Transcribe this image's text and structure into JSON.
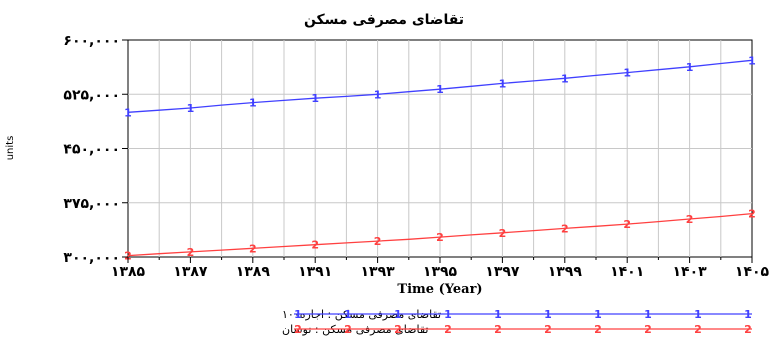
{
  "chart_data": {
    "type": "line",
    "title": "تقاضای مصرفی مسکن",
    "xlabel": "Time (Year)",
    "ylabel": "units",
    "xlim": [
      1385,
      1405
    ],
    "ylim": [
      300000,
      600000
    ],
    "grid": true,
    "x_ticks": [
      1385,
      1387,
      1389,
      1391,
      1393,
      1395,
      1397,
      1399,
      1401,
      1403,
      1405
    ],
    "x_tick_labels": [
      "۱۳۸۵",
      "۱۳۸۷",
      "۱۳۸۹",
      "۱۳۹۱",
      "۱۳۹۳",
      "۱۳۹۵",
      "۱۳۹۷",
      "۱۳۹۹",
      "۱۴۰۱",
      "۱۴۰۳",
      "۱۴۰۵"
    ],
    "y_ticks": [
      300000,
      375000,
      450000,
      525000,
      600000
    ],
    "y_tick_labels": [
      "۳۰۰,۰۰۰",
      "۳۷۵,۰۰۰",
      "۴۵۰,۰۰۰",
      "۵۲۵,۰۰۰",
      "۶۰۰,۰۰۰"
    ],
    "series": [
      {
        "name": "تقاضای مصرفی مسکن : اجاره۱۰۰",
        "marker": "1",
        "color": "#4040ff",
        "x": [
          1385,
          1386,
          1387,
          1388,
          1389,
          1390,
          1391,
          1392,
          1393,
          1394,
          1395,
          1396,
          1397,
          1398,
          1399,
          1400,
          1401,
          1402,
          1403,
          1404,
          1405
        ],
        "values": [
          500000,
          503000,
          506000,
          510000,
          513500,
          516500,
          519500,
          522000,
          525000,
          528500,
          532000,
          536000,
          540000,
          543500,
          547000,
          551000,
          555000,
          559000,
          563000,
          567500,
          572000
        ]
      },
      {
        "name": "تقاضای مصرفی مسکن : نوسان",
        "marker": "2",
        "color": "#ff4040",
        "x": [
          1385,
          1386,
          1387,
          1388,
          1389,
          1390,
          1391,
          1392,
          1393,
          1394,
          1395,
          1396,
          1397,
          1398,
          1399,
          1400,
          1401,
          1402,
          1403,
          1404,
          1405
        ],
        "values": [
          302000,
          304500,
          307000,
          309500,
          312000,
          314500,
          317000,
          319500,
          322000,
          324500,
          327500,
          330500,
          333500,
          336500,
          339500,
          342500,
          345500,
          349000,
          352500,
          356000,
          360000
        ]
      }
    ]
  }
}
